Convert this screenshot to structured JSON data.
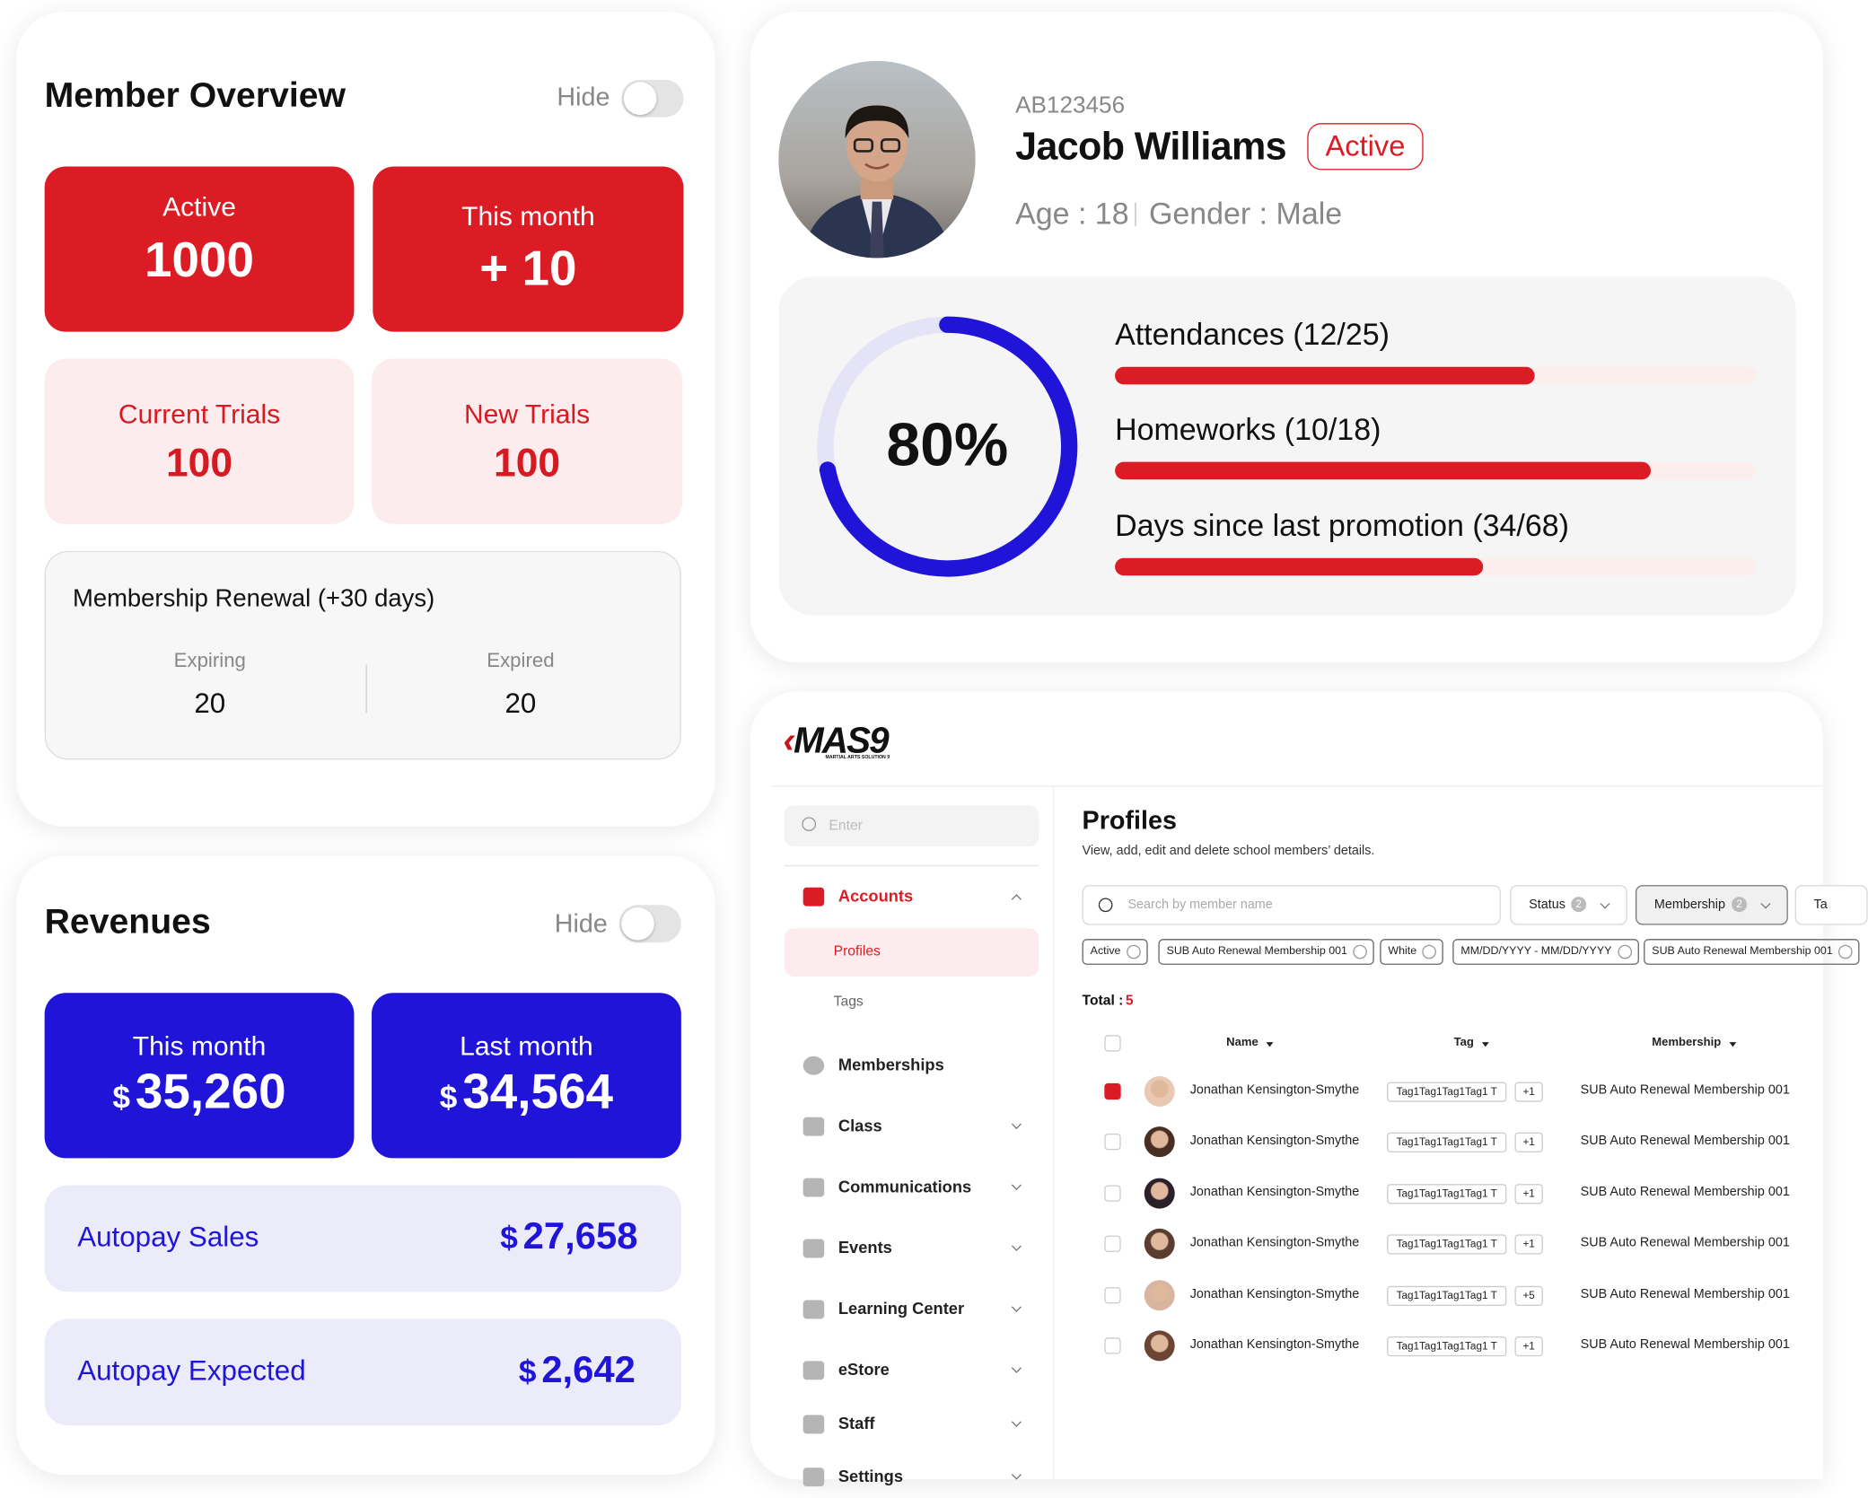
{
  "member_overview": {
    "title": "Member Overview",
    "toggle_label": "Hide",
    "tiles": [
      {
        "label": "Active",
        "value": "1000"
      },
      {
        "label": "This month",
        "value": "+ 10"
      },
      {
        "label": "Current Trials",
        "value": "100"
      },
      {
        "label": "New Trials",
        "value": "100"
      }
    ],
    "renewal": {
      "title": "Membership Renewal (+30 days)",
      "expiring_label": "Expiring",
      "expiring": "20",
      "expired_label": "Expired",
      "expired": "20"
    }
  },
  "revenues": {
    "title": "Revenues",
    "toggle_label": "Hide",
    "tiles": [
      {
        "label": "This month",
        "currency": "$",
        "amount": "35,260"
      },
      {
        "label": "Last month",
        "currency": "$",
        "amount": "34,564"
      }
    ],
    "rows": [
      {
        "label": "Autopay Sales",
        "currency": "$",
        "amount": "27,658"
      },
      {
        "label": "Autopay Expected",
        "currency": "$",
        "amount": "2,642"
      }
    ]
  },
  "profile": {
    "id": "AB123456",
    "name": "Jacob Williams",
    "status": "Active",
    "age": "Age : 18",
    "gender": "Gender : Male",
    "completion": "80%",
    "progress": [
      "Attendances (12/25)",
      "Homeworks (10/18)",
      "Days since last promotion (34/68)"
    ]
  },
  "app": {
    "logo": "MAS9",
    "logo_sub": "MARTIAL ARTS SOLUTION 9",
    "search_placeholder": "Enter",
    "nav": [
      {
        "label": "Accounts",
        "active": true,
        "expandable": true,
        "children": [
          "Profiles",
          "Tags"
        ]
      },
      {
        "label": "Memberships",
        "expandable": false
      },
      {
        "label": "Class",
        "expandable": true
      },
      {
        "label": "Communications",
        "expandable": true
      },
      {
        "label": "Events",
        "expandable": true
      },
      {
        "label": "Learning Center",
        "expandable": true
      },
      {
        "label": "eStore",
        "expandable": true
      },
      {
        "label": "Staff",
        "expandable": true
      },
      {
        "label": "Settings",
        "expandable": true
      }
    ],
    "page": {
      "title": "Profiles",
      "subtitle": "View, add, edit and delete school members’ details.",
      "search_placeholder": "Search by member name",
      "filters": [
        {
          "label": "Status",
          "count": "2"
        },
        {
          "label": "Membership",
          "count": "2"
        },
        {
          "label": "Ta"
        }
      ],
      "chips": [
        "Active",
        "SUB Auto Renewal Membership 001",
        "White",
        "MM/DD/YYYY - MM/DD/YYYY",
        "SUB Auto Renewal Membership 001"
      ],
      "total_label": "Total :",
      "total": "5",
      "columns": [
        "Name",
        "Tag",
        "Membership"
      ],
      "rows": [
        {
          "checked": true,
          "name": "Jonathan Kensington-Smythe",
          "tag": "Tag1Tag1Tag1Tag1 T",
          "more": "+1",
          "membership": "SUB Auto Renewal Membership 001"
        },
        {
          "checked": false,
          "name": "Jonathan Kensington-Smythe",
          "tag": "Tag1Tag1Tag1Tag1 T",
          "more": "+1",
          "membership": "SUB Auto Renewal Membership 001"
        },
        {
          "checked": false,
          "name": "Jonathan Kensington-Smythe",
          "tag": "Tag1Tag1Tag1Tag1 T",
          "more": "+1",
          "membership": "SUB Auto Renewal Membership 001"
        },
        {
          "checked": false,
          "name": "Jonathan Kensington-Smythe",
          "tag": "Tag1Tag1Tag1Tag1 T",
          "more": "+1",
          "membership": "SUB Auto Renewal Membership 001"
        },
        {
          "checked": false,
          "name": "Jonathan Kensington-Smythe",
          "tag": "Tag1Tag1Tag1Tag1 T",
          "more": "+5",
          "membership": "SUB Auto Renewal Membership 001"
        },
        {
          "checked": false,
          "name": "Jonathan Kensington-Smythe",
          "tag": "Tag1Tag1Tag1Tag1 T",
          "more": "+1",
          "membership": "SUB Auto Renewal Membership 001"
        }
      ]
    }
  }
}
